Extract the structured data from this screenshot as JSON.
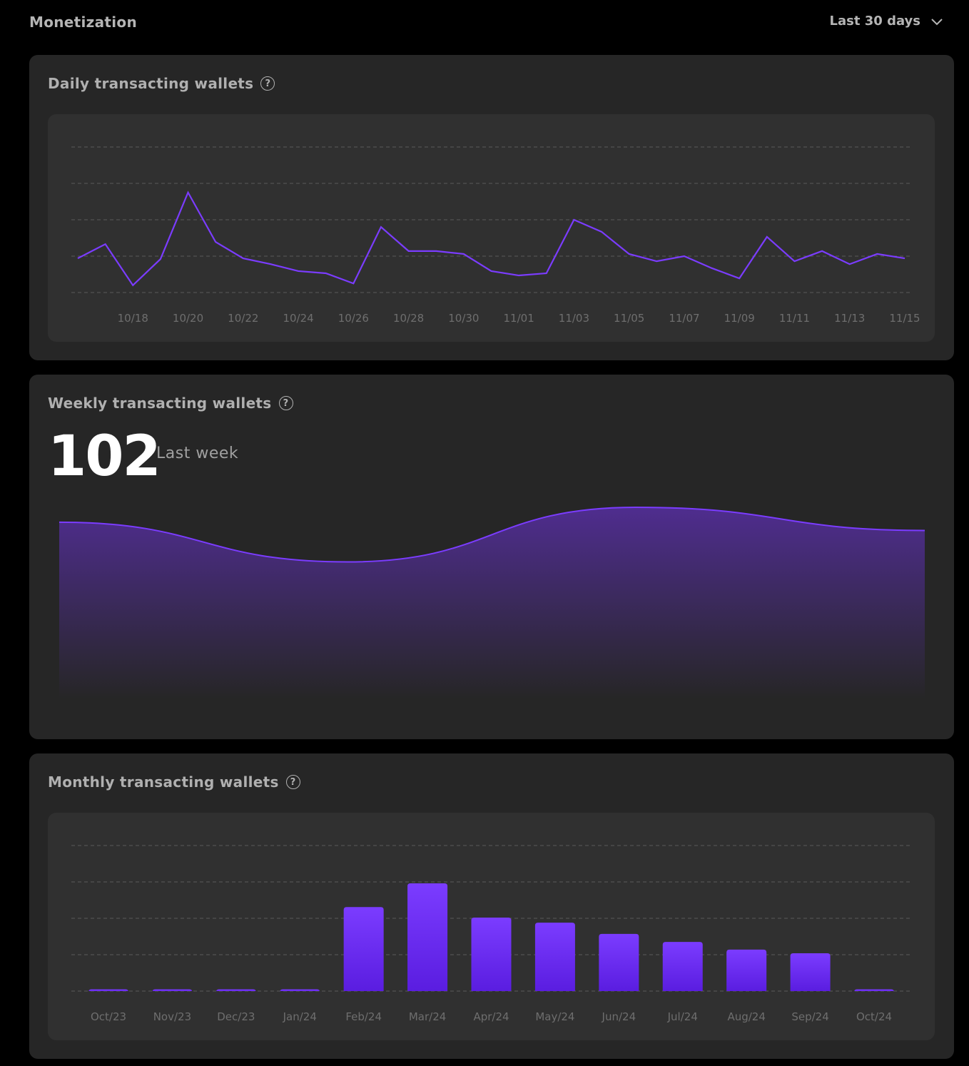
{
  "header": {
    "title": "Monetization",
    "range_label": "Last 30 days"
  },
  "colors": {
    "accent": "#7b3cff",
    "background": "#000000",
    "card": "#262626",
    "panel": "#303030"
  },
  "daily": {
    "title": "Daily transacting wallets",
    "help_icon": "question-circle-icon"
  },
  "weekly": {
    "title": "Weekly transacting wallets",
    "value": "102",
    "value_label": "Last week",
    "help_icon": "question-circle-icon"
  },
  "monthly": {
    "title": "Monthly transacting wallets",
    "help_icon": "question-circle-icon"
  },
  "chart_data": [
    {
      "type": "line",
      "title": "Daily transacting wallets",
      "grid": true,
      "ylim": [
        0,
        4
      ],
      "x": [
        "10/16",
        "10/17",
        "10/18",
        "10/19",
        "10/20",
        "10/21",
        "10/22",
        "10/23",
        "10/24",
        "10/25",
        "10/26",
        "10/27",
        "10/28",
        "10/29",
        "10/30",
        "10/31",
        "11/01",
        "11/02",
        "11/03",
        "11/04",
        "11/05",
        "11/06",
        "11/07",
        "11/08",
        "11/09",
        "11/10",
        "11/11",
        "11/12",
        "11/13",
        "11/14",
        "11/15"
      ],
      "tick_labels": [
        "10/18",
        "10/20",
        "10/22",
        "10/24",
        "10/26",
        "10/28",
        "10/30",
        "11/01",
        "11/03",
        "11/05",
        "11/07",
        "11/09",
        "11/11",
        "11/13",
        "11/15"
      ],
      "values": [
        0.94,
        1.33,
        0.2,
        0.92,
        2.75,
        1.39,
        0.94,
        0.78,
        0.59,
        0.53,
        0.25,
        1.8,
        1.14,
        1.14,
        1.06,
        0.59,
        0.47,
        0.53,
        2.0,
        1.67,
        1.06,
        0.86,
        1.0,
        0.67,
        0.39,
        1.53,
        0.86,
        1.14,
        0.78,
        1.06,
        0.94
      ]
    },
    {
      "type": "area",
      "title": "Weekly transacting wallets",
      "grid": false,
      "ylim": [
        0,
        116
      ],
      "values": [
        107,
        83,
        116,
        102
      ]
    },
    {
      "type": "bar",
      "title": "Monthly transacting wallets",
      "grid": true,
      "ylim": [
        0,
        4
      ],
      "categories": [
        "Oct/23",
        "Nov/23",
        "Dec/23",
        "Jan/24",
        "Feb/24",
        "Mar/24",
        "Apr/24",
        "May/24",
        "Jun/24",
        "Jul/24",
        "Aug/24",
        "Sep/24",
        "Oct/24"
      ],
      "values": [
        0.05,
        0.05,
        0.05,
        0.05,
        2.31,
        2.96,
        2.02,
        1.88,
        1.57,
        1.35,
        1.14,
        1.04,
        0.05
      ]
    }
  ]
}
